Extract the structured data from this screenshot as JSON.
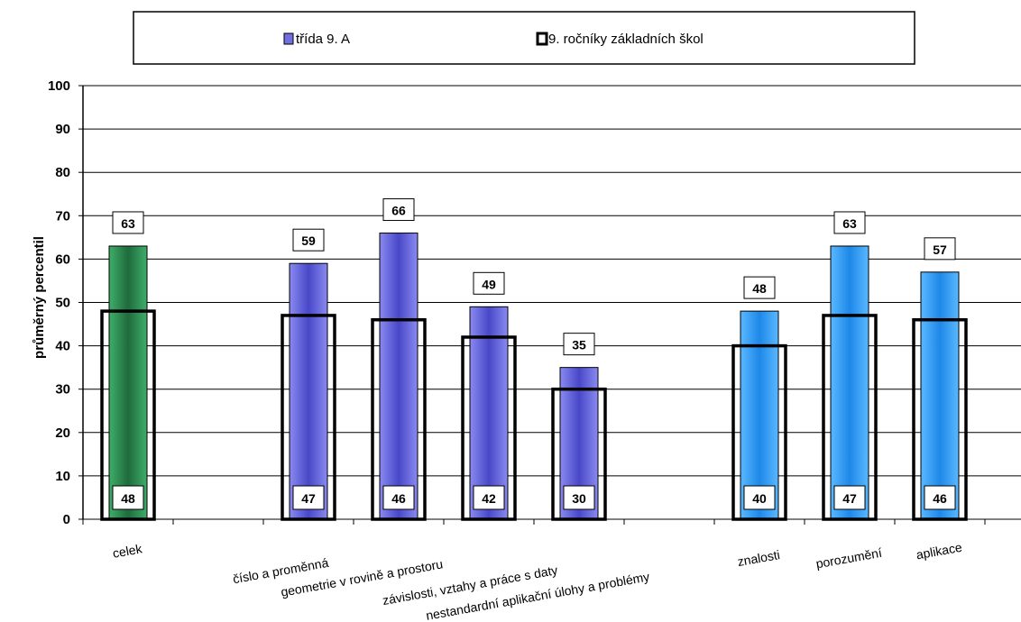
{
  "chart_data": {
    "type": "bar",
    "ylabel": "průměrný percentil",
    "ylim": [
      0,
      100
    ],
    "yticks": [
      0,
      10,
      20,
      30,
      40,
      50,
      60,
      70,
      80,
      90,
      100
    ],
    "grid": true,
    "legend_position": "top",
    "categories": [
      "celek",
      "",
      "číslo a proměnná",
      "geometrie v rovině a prostoru",
      "závislosti, vztahy a práce s daty",
      "nestandardní aplikační úlohy a problémy",
      "",
      "znalosti",
      "porozumění",
      "aplikace"
    ],
    "series": [
      {
        "name": "třída 9. A",
        "values": [
          63,
          null,
          59,
          66,
          49,
          35,
          null,
          48,
          63,
          57
        ],
        "colors": [
          "#2e8b57",
          null,
          "#6f6fe0",
          "#6f6fe0",
          "#6f6fe0",
          "#6f6fe0",
          null,
          "#3a9cf0",
          "#3a9cf0",
          "#3a9cf0"
        ]
      },
      {
        "name": "9. ročníky základních škol",
        "values": [
          48,
          null,
          47,
          46,
          42,
          30,
          null,
          40,
          47,
          46
        ],
        "style": "outline"
      }
    ]
  }
}
